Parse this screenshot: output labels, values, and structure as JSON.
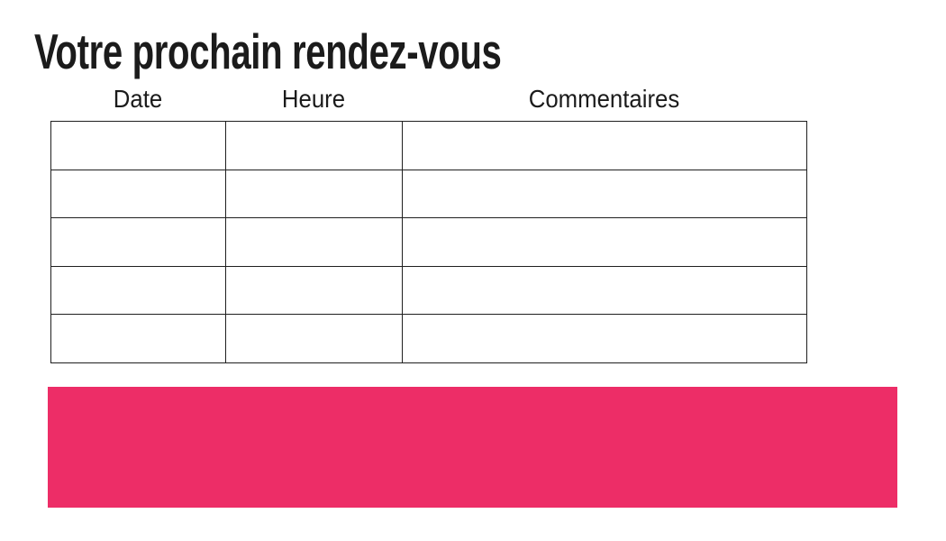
{
  "page": {
    "title": "Votre prochain rendez-vous"
  },
  "table": {
    "columns": [
      {
        "label": "Date"
      },
      {
        "label": "Heure"
      },
      {
        "label": "Commentaires"
      }
    ],
    "rows": [
      {
        "date": "",
        "heure": "",
        "commentaires": ""
      },
      {
        "date": "",
        "heure": "",
        "commentaires": ""
      },
      {
        "date": "",
        "heure": "",
        "commentaires": ""
      },
      {
        "date": "",
        "heure": "",
        "commentaires": ""
      },
      {
        "date": "",
        "heure": "",
        "commentaires": ""
      }
    ]
  },
  "banner": {
    "color": "#ED2D67"
  }
}
